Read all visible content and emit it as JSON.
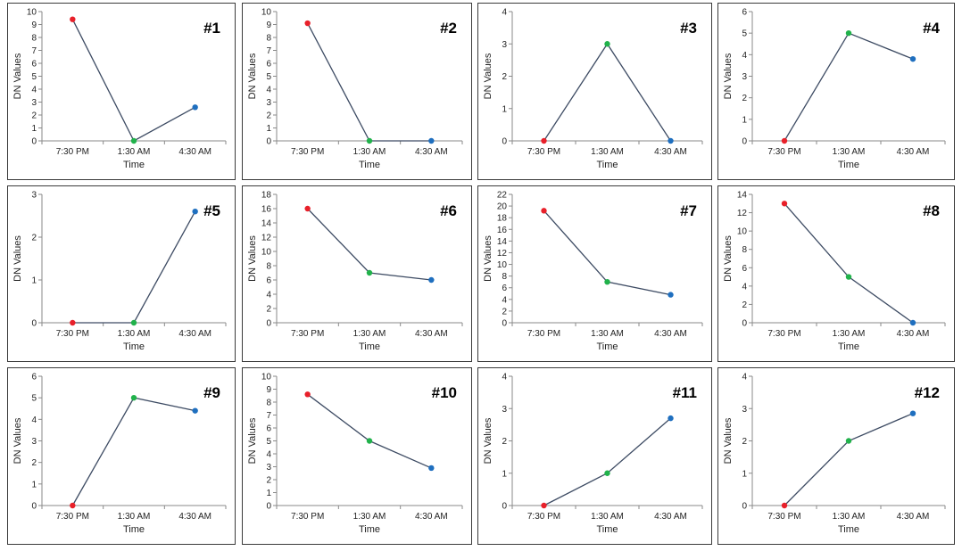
{
  "common": {
    "xlabel": "Time",
    "ylabel": "DN Values",
    "categories": [
      "7:30 PM",
      "1:30 AM",
      "4:30 AM"
    ],
    "point_colors": [
      "#e8202a",
      "#21b24b",
      "#1f6fbf"
    ],
    "line_color": "#3d4b63"
  },
  "chart_data": [
    {
      "type": "line",
      "title": "#1",
      "categories": [
        "7:30 PM",
        "1:30 AM",
        "4:30 AM"
      ],
      "values": [
        9.4,
        0,
        2.6
      ],
      "ylim": [
        0,
        10
      ],
      "ystep": 1,
      "xlabel": "Time",
      "ylabel": "DN Values"
    },
    {
      "type": "line",
      "title": "#2",
      "categories": [
        "7:30 PM",
        "1:30 AM",
        "4:30 AM"
      ],
      "values": [
        9.1,
        0,
        0
      ],
      "ylim": [
        0,
        10
      ],
      "ystep": 1,
      "xlabel": "Time",
      "ylabel": "DN Values"
    },
    {
      "type": "line",
      "title": "#3",
      "categories": [
        "7:30 PM",
        "1:30 AM",
        "4:30 AM"
      ],
      "values": [
        0,
        3,
        0
      ],
      "ylim": [
        0,
        4
      ],
      "ystep": 1,
      "xlabel": "Time",
      "ylabel": "DN Values"
    },
    {
      "type": "line",
      "title": "#4",
      "categories": [
        "7:30 PM",
        "1:30 AM",
        "4:30 AM"
      ],
      "values": [
        0,
        5,
        3.8
      ],
      "ylim": [
        0,
        6
      ],
      "ystep": 1,
      "xlabel": "Time",
      "ylabel": "DN Values"
    },
    {
      "type": "line",
      "title": "#5",
      "categories": [
        "7:30 PM",
        "1:30 AM",
        "4:30 AM"
      ],
      "values": [
        0,
        0,
        2.6
      ],
      "ylim": [
        0,
        3
      ],
      "ystep": 1,
      "xlabel": "Time",
      "ylabel": "DN Values"
    },
    {
      "type": "line",
      "title": "#6",
      "categories": [
        "7:30 PM",
        "1:30 AM",
        "4:30 AM"
      ],
      "values": [
        16,
        7,
        6
      ],
      "ylim": [
        0,
        18
      ],
      "ystep": 2,
      "xlabel": "Time",
      "ylabel": "DN Values"
    },
    {
      "type": "line",
      "title": "#7",
      "categories": [
        "7:30 PM",
        "1:30 AM",
        "4:30 AM"
      ],
      "values": [
        19.2,
        7,
        4.8
      ],
      "ylim": [
        0,
        22
      ],
      "ystep": 2,
      "xlabel": "Time",
      "ylabel": "DN Values"
    },
    {
      "type": "line",
      "title": "#8",
      "categories": [
        "7:30 PM",
        "1:30 AM",
        "4:30 AM"
      ],
      "values": [
        13,
        5,
        0
      ],
      "ylim": [
        0,
        14
      ],
      "ystep": 2,
      "xlabel": "Time",
      "ylabel": "DN Values"
    },
    {
      "type": "line",
      "title": "#9",
      "categories": [
        "7:30 PM",
        "1:30 AM",
        "4:30 AM"
      ],
      "values": [
        0,
        5,
        4.4
      ],
      "ylim": [
        0,
        6
      ],
      "ystep": 1,
      "xlabel": "Time",
      "ylabel": "DN Values"
    },
    {
      "type": "line",
      "title": "#10",
      "categories": [
        "7:30 PM",
        "1:30 AM",
        "4:30 AM"
      ],
      "values": [
        8.6,
        5,
        2.9
      ],
      "ylim": [
        0,
        10
      ],
      "ystep": 1,
      "xlabel": "Time",
      "ylabel": "DN Values"
    },
    {
      "type": "line",
      "title": "#11",
      "categories": [
        "7:30 PM",
        "1:30 AM",
        "4:30 AM"
      ],
      "values": [
        0,
        1,
        2.7
      ],
      "ylim": [
        0,
        4
      ],
      "ystep": 1,
      "xlabel": "Time",
      "ylabel": "DN Values"
    },
    {
      "type": "line",
      "title": "#12",
      "categories": [
        "7:30 PM",
        "1:30 AM",
        "4:30 AM"
      ],
      "values": [
        0,
        2,
        2.85
      ],
      "ylim": [
        0,
        4
      ],
      "ystep": 1,
      "xlabel": "Time",
      "ylabel": "DN Values"
    }
  ]
}
